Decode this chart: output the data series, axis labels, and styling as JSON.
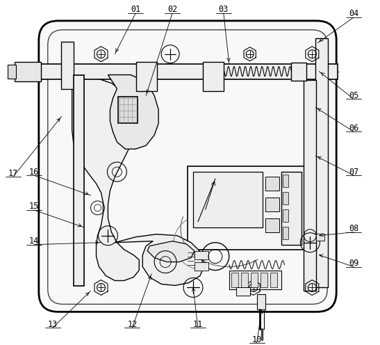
{
  "fig_width": 5.47,
  "fig_height": 4.96,
  "dpi": 100,
  "bg_color": "#ffffff",
  "lc": "#000000",
  "lc_mid": "#555555",
  "lc_light": "#888888",
  "box_bg": "#f5f5f5",
  "dot_bg": "#e8e8e8"
}
